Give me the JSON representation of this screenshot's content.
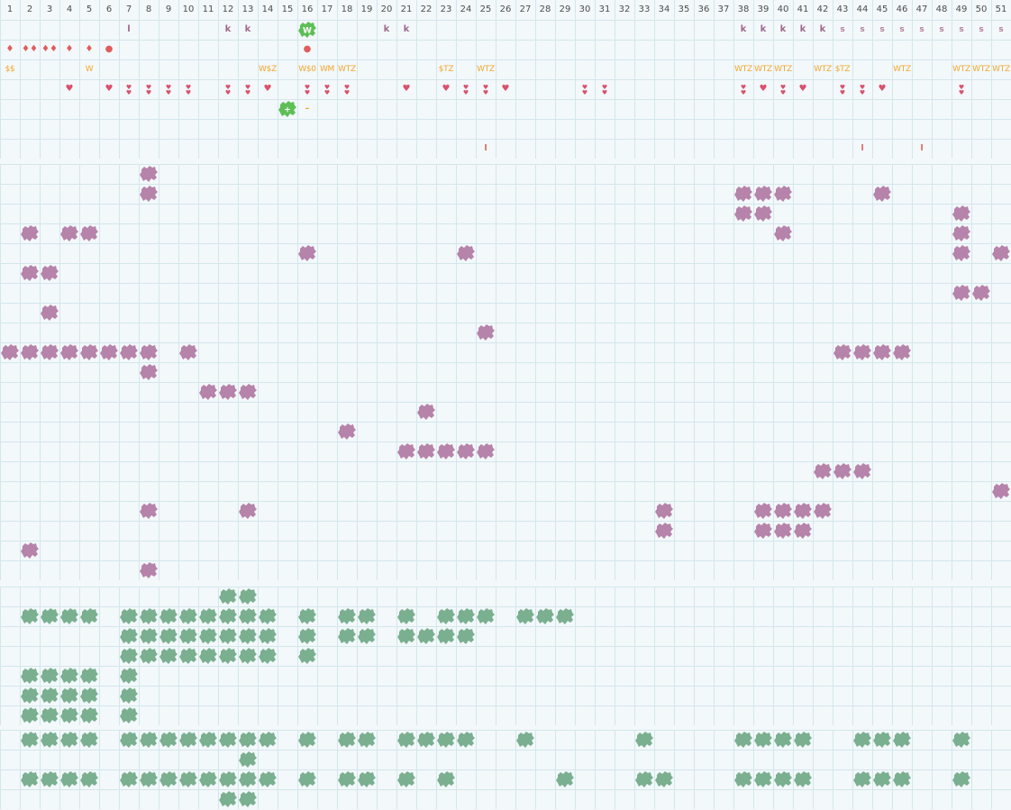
{
  "columns": [
    "1",
    "2",
    "3",
    "4",
    "5",
    "6",
    "7",
    "8",
    "9",
    "10",
    "11",
    "12",
    "13",
    "14",
    "15",
    "16",
    "17",
    "18",
    "19",
    "20",
    "21",
    "22",
    "23",
    "24",
    "25",
    "26",
    "27",
    "28",
    "29",
    "30",
    "31",
    "32",
    "33",
    "34",
    "35",
    "36",
    "37",
    "38",
    "39",
    "40",
    "41",
    "42",
    "43",
    "44",
    "45",
    "46",
    "47",
    "48",
    "49",
    "50",
    "51"
  ],
  "colors": {
    "background": "#f3f8fa",
    "grid": "#d2e7ec",
    "separator": "#ffffff",
    "k_text": "#a0688e",
    "s_text": "#b27f9e",
    "marker_red": "#e05d5d",
    "wtz_text": "#f0a72e",
    "heart": "#d9526c",
    "purple_blob": "#b683aa",
    "green_blob": "#7aaf90",
    "green_button": "#5dbf55"
  },
  "top_rows": [
    {
      "row": 1,
      "items": [
        {
          "col": 7,
          "text": "l",
          "kind": "k"
        },
        {
          "col": 12,
          "text": "k",
          "kind": "k"
        },
        {
          "col": 13,
          "text": "k",
          "kind": "k"
        },
        {
          "col": 16,
          "text": "W",
          "kind": "button"
        },
        {
          "col": 20,
          "text": "k",
          "kind": "k"
        },
        {
          "col": 21,
          "text": "k",
          "kind": "k"
        },
        {
          "col": 38,
          "text": "k",
          "kind": "k"
        },
        {
          "col": 39,
          "text": "k",
          "kind": "k"
        },
        {
          "col": 40,
          "text": "k",
          "kind": "k"
        },
        {
          "col": 41,
          "text": "k",
          "kind": "k"
        },
        {
          "col": 42,
          "text": "k",
          "kind": "k"
        },
        {
          "col": 43,
          "text": "s",
          "kind": "s"
        },
        {
          "col": 44,
          "text": "s",
          "kind": "s"
        },
        {
          "col": 45,
          "text": "s",
          "kind": "s"
        },
        {
          "col": 46,
          "text": "s",
          "kind": "s"
        },
        {
          "col": 47,
          "text": "s",
          "kind": "s"
        },
        {
          "col": 48,
          "text": "s",
          "kind": "s"
        },
        {
          "col": 49,
          "text": "s",
          "kind": "s"
        },
        {
          "col": 50,
          "text": "s",
          "kind": "s"
        },
        {
          "col": 51,
          "text": "s",
          "kind": "s"
        }
      ]
    },
    {
      "row": 2,
      "items": [
        {
          "col": 1,
          "text": "♦",
          "kind": "drop"
        },
        {
          "col": 2,
          "text": "♦♦",
          "kind": "drop"
        },
        {
          "col": 3,
          "text": "♦♦",
          "kind": "drop"
        },
        {
          "col": 4,
          "text": "♦",
          "kind": "drop"
        },
        {
          "col": 5,
          "text": "♦",
          "kind": "drop"
        },
        {
          "col": 6,
          "text": "●",
          "kind": "drop"
        },
        {
          "col": 16,
          "text": "●",
          "kind": "drop"
        }
      ]
    },
    {
      "row": 3,
      "items": [
        {
          "col": 1,
          "text": "$$",
          "kind": "wtz"
        },
        {
          "col": 5,
          "text": "W",
          "kind": "wtz"
        },
        {
          "col": 14,
          "text": "W$Z",
          "kind": "wtz"
        },
        {
          "col": 16,
          "text": "W$0",
          "kind": "wtz"
        },
        {
          "col": 17,
          "text": "WM",
          "kind": "wtz"
        },
        {
          "col": 18,
          "text": "WTZ",
          "kind": "wtz"
        },
        {
          "col": 23,
          "text": "$TZ",
          "kind": "wtz"
        },
        {
          "col": 25,
          "text": "WTZ",
          "kind": "wtz"
        },
        {
          "col": 38,
          "text": "WTZ",
          "kind": "wtz"
        },
        {
          "col": 39,
          "text": "WTZ",
          "kind": "wtz"
        },
        {
          "col": 40,
          "text": "WTZ",
          "kind": "wtz"
        },
        {
          "col": 42,
          "text": "WTZ",
          "kind": "wtz"
        },
        {
          "col": 43,
          "text": "$TZ",
          "kind": "wtz"
        },
        {
          "col": 46,
          "text": "WTZ",
          "kind": "wtz"
        },
        {
          "col": 49,
          "text": "WTZ",
          "kind": "wtz"
        },
        {
          "col": 50,
          "text": "WTZ",
          "kind": "wtz"
        },
        {
          "col": 51,
          "text": "WTZ",
          "kind": "wtz"
        }
      ]
    },
    {
      "row": 4,
      "items": [
        {
          "col": 4,
          "text": "♥",
          "kind": "heart"
        },
        {
          "col": 6,
          "text": "♥",
          "kind": "heart"
        },
        {
          "col": 7,
          "text": "♥♥",
          "kind": "heart2"
        },
        {
          "col": 8,
          "text": "♥♥",
          "kind": "heart2"
        },
        {
          "col": 9,
          "text": "♥♥",
          "kind": "heart2"
        },
        {
          "col": 10,
          "text": "♥♥",
          "kind": "heart2"
        },
        {
          "col": 12,
          "text": "♥♥",
          "kind": "heart2"
        },
        {
          "col": 13,
          "text": "♥♥",
          "kind": "heart2"
        },
        {
          "col": 14,
          "text": "♥",
          "kind": "heart"
        },
        {
          "col": 16,
          "text": "♥♥",
          "kind": "heart2"
        },
        {
          "col": 17,
          "text": "♥♥",
          "kind": "heart2"
        },
        {
          "col": 18,
          "text": "♥♥",
          "kind": "heart2"
        },
        {
          "col": 21,
          "text": "♥",
          "kind": "heart"
        },
        {
          "col": 23,
          "text": "♥",
          "kind": "heart"
        },
        {
          "col": 24,
          "text": "♥♥",
          "kind": "heart2"
        },
        {
          "col": 25,
          "text": "♥♥",
          "kind": "heart2"
        },
        {
          "col": 26,
          "text": "♥",
          "kind": "heart"
        },
        {
          "col": 30,
          "text": "♥♥",
          "kind": "heart2"
        },
        {
          "col": 31,
          "text": "♥♥",
          "kind": "heart2"
        },
        {
          "col": 38,
          "text": "♥♥",
          "kind": "heart2"
        },
        {
          "col": 39,
          "text": "♥",
          "kind": "heart"
        },
        {
          "col": 40,
          "text": "♥♥",
          "kind": "heart2"
        },
        {
          "col": 41,
          "text": "♥",
          "kind": "heart"
        },
        {
          "col": 43,
          "text": "♥♥",
          "kind": "heart2"
        },
        {
          "col": 44,
          "text": "♥♥",
          "kind": "heart2"
        },
        {
          "col": 45,
          "text": "♥",
          "kind": "heart"
        },
        {
          "col": 49,
          "text": "♥♥",
          "kind": "heart2"
        }
      ]
    },
    {
      "row": 5,
      "items": [
        {
          "col": 15,
          "text": "+",
          "kind": "plus-button"
        },
        {
          "col": 16,
          "text": "–",
          "kind": "dash"
        }
      ]
    },
    {
      "row": 6,
      "items": []
    },
    {
      "row": 7,
      "items": [
        {
          "col": 25,
          "text": "l",
          "kind": "tick"
        },
        {
          "col": 44,
          "text": "l",
          "kind": "tick"
        },
        {
          "col": 47,
          "text": "l",
          "kind": "tick"
        }
      ]
    }
  ],
  "purple_section": [
    {
      "row": 1,
      "cols": [
        8
      ]
    },
    {
      "row": 2,
      "cols": [
        8,
        38,
        39,
        40,
        45
      ]
    },
    {
      "row": 3,
      "cols": [
        38,
        39,
        49
      ]
    },
    {
      "row": 4,
      "cols": [
        2,
        4,
        5,
        40,
        49
      ]
    },
    {
      "row": 5,
      "cols": [
        16,
        24,
        49,
        51
      ]
    },
    {
      "row": 6,
      "cols": [
        2,
        3
      ]
    },
    {
      "row": 7,
      "cols": [
        49,
        50
      ]
    },
    {
      "row": 8,
      "cols": [
        3
      ]
    },
    {
      "row": 9,
      "cols": [
        25
      ]
    },
    {
      "row": 10,
      "cols": [
        1,
        2,
        3,
        4,
        5,
        6,
        7,
        8,
        10,
        43,
        44,
        45,
        46
      ]
    },
    {
      "row": 11,
      "cols": [
        8
      ]
    },
    {
      "row": 12,
      "cols": [
        11,
        12,
        13
      ]
    },
    {
      "row": 13,
      "cols": [
        22
      ]
    },
    {
      "row": 14,
      "cols": [
        18
      ]
    },
    {
      "row": 15,
      "cols": [
        21,
        22,
        23,
        24,
        25
      ]
    },
    {
      "row": 16,
      "cols": [
        42,
        43,
        44
      ]
    },
    {
      "row": 17,
      "cols": [
        51
      ]
    },
    {
      "row": 18,
      "cols": [
        8,
        13,
        34,
        39,
        40,
        41,
        42
      ]
    },
    {
      "row": 19,
      "cols": [
        34,
        39,
        40,
        41
      ]
    },
    {
      "row": 20,
      "cols": [
        2
      ]
    },
    {
      "row": 21,
      "cols": [
        8
      ]
    }
  ],
  "green_section_a": [
    {
      "row": 1,
      "cols": [
        12,
        13
      ]
    },
    {
      "row": 2,
      "cols": [
        2,
        3,
        4,
        5,
        7,
        8,
        9,
        10,
        11,
        12,
        13,
        14,
        16,
        18,
        19,
        21,
        23,
        24,
        25,
        27,
        28,
        29
      ]
    },
    {
      "row": 3,
      "cols": [
        7,
        8,
        9,
        10,
        11,
        12,
        13,
        14,
        16,
        18,
        19,
        21,
        22,
        23,
        24
      ]
    },
    {
      "row": 4,
      "cols": [
        7,
        8,
        9,
        10,
        11,
        12,
        13,
        14,
        16
      ]
    },
    {
      "row": 5,
      "cols": [
        2,
        3,
        4,
        5,
        7
      ]
    },
    {
      "row": 6,
      "cols": [
        2,
        3,
        4,
        5,
        7
      ]
    },
    {
      "row": 7,
      "cols": [
        2,
        3,
        4,
        5,
        7
      ]
    }
  ],
  "green_section_b": [
    {
      "row": 1,
      "cols": [
        2,
        3,
        4,
        5,
        7,
        8,
        9,
        10,
        11,
        12,
        13,
        14,
        16,
        18,
        19,
        21,
        22,
        23,
        24,
        27,
        33,
        38,
        39,
        40,
        41,
        44,
        45,
        46,
        49
      ]
    },
    {
      "row": 2,
      "cols": [
        13
      ]
    },
    {
      "row": 3,
      "cols": [
        2,
        3,
        4,
        5,
        7,
        8,
        9,
        10,
        11,
        12,
        13,
        14,
        16,
        18,
        19,
        21,
        23,
        29,
        33,
        34,
        38,
        39,
        40,
        41,
        44,
        45,
        46,
        49
      ]
    },
    {
      "row": 4,
      "cols": [
        12,
        13
      ]
    }
  ]
}
